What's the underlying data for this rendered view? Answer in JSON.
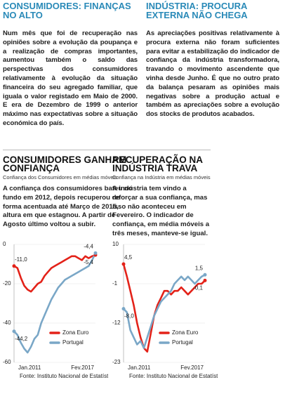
{
  "articles": [
    {
      "title": "CONSUMIDORES: FINANÇAS NO ALTO",
      "body": "Num mês que foi de recuperação nas opiniões sobre a evolução da poupança e a realização de compras importantes, aumentou também o saldo das perspectivas dos consumidores relativamente à evolução da situação financeira do seu agregado familiar, que iguala o valor registado em Maio de 2000. E era de Dezembro de 1999 o anterior máximo nas expectativas sobre a situação económica do país."
    },
    {
      "title": "INDÚSTRIA: PROCURA EXTERNA NÃO CHEGA",
      "body": "As apreciações positivas relativamente à procura externa não foram suficientes para evitar a estabilização do indicador de confiança da indústria transformadora, travando o movimento ascendente que vinha desde Junho. É que no outro prato da balança pesaram as opiniões mais negativas sobre a produção actual e também as apreciações sobre a evolução dos stocks de produtos acabados."
    },
    {
      "body": "A confiança dos consumidores bateu no fundo em 2012, depois recuperou de forma acentuada até Março de 2015, altura em que estagnou. A partir de Agosto último voltou a subir."
    },
    {
      "body": "A indústria tem vindo a reforçar a sua confiança, mas isso não aconteceu em Fevereiro. O indicador de confiança, em média móveis a três meses, manteve-se igual."
    }
  ],
  "chart_data": [
    {
      "type": "line",
      "title": "CONSUMIDORES GANHAM CONFIANÇA",
      "subtitle": "Confiança dos Consumidores em médias móveis",
      "categories": [
        "Jan.2011",
        null,
        null,
        null,
        null,
        null,
        null,
        null,
        null,
        null,
        null,
        null,
        null,
        null,
        null,
        null,
        null,
        null,
        null,
        null,
        null,
        null,
        null,
        null,
        "Fev.2017"
      ],
      "ylim": [
        -60,
        0
      ],
      "yticks": [
        0,
        -20,
        -40,
        -60
      ],
      "grid": true,
      "series": [
        {
          "name": "Zona Euro",
          "color": "#e32219",
          "values": [
            -11.0,
            -12,
            -17,
            -21,
            -23,
            -24,
            -22,
            -20,
            -19,
            -16,
            -14,
            -12,
            -11,
            -10,
            -9,
            -8,
            -7,
            -6,
            -6,
            -7,
            -8,
            -6,
            -7,
            -6,
            -5.4
          ],
          "value_labels": [
            "-11,0",
            null,
            null,
            null,
            null,
            null,
            null,
            null,
            null,
            null,
            null,
            null,
            null,
            null,
            null,
            null,
            null,
            null,
            null,
            null,
            null,
            null,
            null,
            null,
            "-5,4"
          ]
        },
        {
          "name": "Portugal",
          "color": "#7aa7c7",
          "values": [
            -44.2,
            -46,
            -50,
            -53,
            -55,
            -52,
            -48,
            -46,
            -40,
            -36,
            -32,
            -28,
            -25,
            -22,
            -20,
            -18,
            -17,
            -16,
            -15,
            -14,
            -13,
            -12,
            -11,
            -8,
            -4.4
          ],
          "value_labels": [
            "-44,2",
            null,
            null,
            null,
            null,
            null,
            null,
            null,
            null,
            null,
            null,
            null,
            null,
            null,
            null,
            null,
            null,
            null,
            null,
            null,
            null,
            null,
            null,
            null,
            "-4,4"
          ]
        }
      ],
      "source": "Fonte: Instituto Nacional de Estatística"
    },
    {
      "type": "line",
      "title": "RECUPERAÇÃO NA INDÚSTRIA TRAVA",
      "subtitle": "Confiança na Indústria em médias móveis",
      "categories": [
        "Jan.2011",
        null,
        null,
        null,
        null,
        null,
        null,
        null,
        null,
        null,
        null,
        null,
        null,
        null,
        null,
        null,
        null,
        null,
        null,
        null,
        null,
        null,
        null,
        null,
        "Fev.2017"
      ],
      "ylim": [
        -23,
        10
      ],
      "yticks": [
        10,
        -1,
        -12,
        -23
      ],
      "grid": true,
      "series": [
        {
          "name": "Zona Euro",
          "color": "#e32219",
          "values": [
            4.5,
            1,
            -3,
            -7,
            -12,
            -16,
            -19,
            -20,
            -15,
            -10,
            -7,
            -5,
            -3,
            -3,
            -4,
            -3,
            -3,
            -2,
            -3,
            -4,
            -3,
            -2,
            -1,
            -1,
            -0.1
          ],
          "value_labels": [
            "4,5",
            null,
            null,
            null,
            null,
            null,
            null,
            null,
            null,
            null,
            null,
            null,
            null,
            null,
            null,
            null,
            null,
            null,
            null,
            null,
            null,
            null,
            null,
            null,
            "-0,1"
          ]
        },
        {
          "name": "Portugal",
          "color": "#7aa7c7",
          "values": [
            -8.0,
            -9,
            -14,
            -16,
            -18,
            -17,
            -19,
            -16,
            -13,
            -10,
            -8,
            -6,
            -5,
            -4,
            -3,
            -1,
            0,
            1,
            0,
            1,
            0,
            -1,
            0,
            1,
            1.5
          ],
          "value_labels": [
            "-8,0",
            null,
            null,
            null,
            null,
            null,
            null,
            null,
            null,
            null,
            null,
            null,
            null,
            null,
            null,
            null,
            null,
            null,
            null,
            null,
            null,
            null,
            null,
            null,
            "1,5"
          ]
        }
      ],
      "source": "Fonte: Instituto Nacional de Estatística"
    }
  ]
}
